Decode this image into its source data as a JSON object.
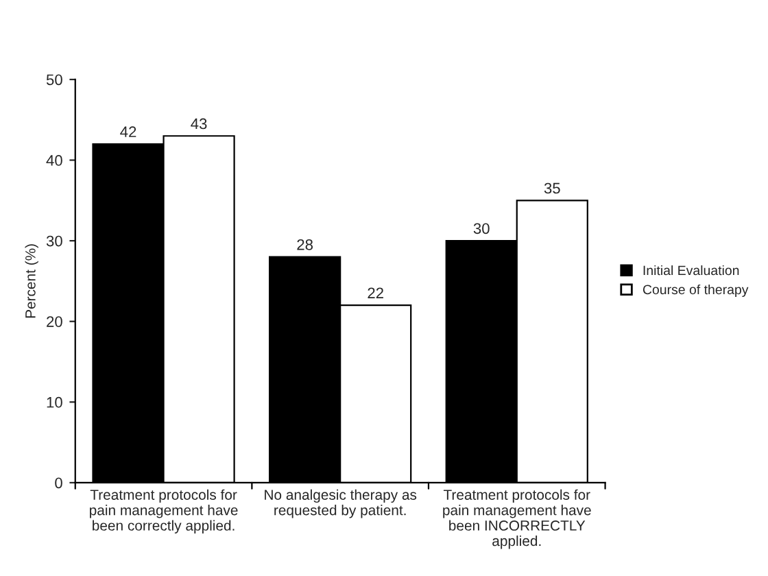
{
  "chart_data": {
    "type": "bar",
    "categories": [
      "Treatment protocols for\npain management have\nbeen correctly applied.",
      "No analgesic therapy as\nrequested by patient.",
      "Treatment protocols for\npain management have\nbeen INCORRECTLY\napplied."
    ],
    "series": [
      {
        "name": "Initial Evaluation",
        "color": "#000000",
        "values": [
          42,
          28,
          30
        ]
      },
      {
        "name": "Course of therapy",
        "color": "#ffffff",
        "values": [
          43,
          22,
          35
        ]
      }
    ],
    "ylabel": "Percent (%)",
    "ylim": [
      0,
      50
    ],
    "yticks": [
      0,
      10,
      20,
      30,
      40,
      50
    ],
    "data_labels": true,
    "grid": false,
    "legend": "right"
  }
}
